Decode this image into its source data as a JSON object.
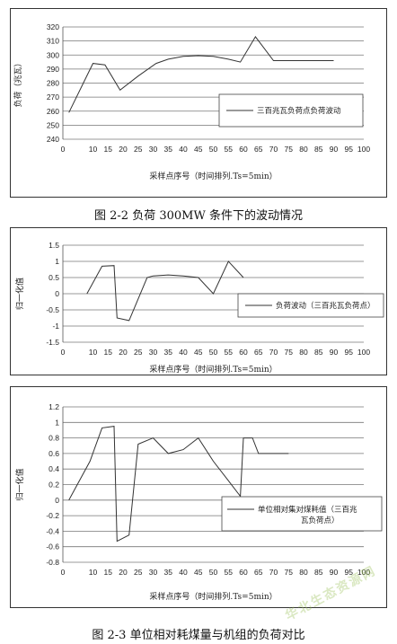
{
  "captions": {
    "fig1": "图 2-2 负荷 300MW 条件下的波动情况",
    "fig2": "图 2-3 单位相对耗煤量与机组的负荷对比"
  },
  "watermark": "华北生态资源网",
  "chart_data": [
    {
      "type": "line",
      "xlabel": "采样点序号（时间排列.Ts=5min）",
      "ylabel": "负荷（兆瓦）",
      "xticks": [
        0,
        10,
        15,
        20,
        25,
        30,
        35,
        40,
        45,
        50,
        55,
        60,
        65,
        70,
        75,
        80,
        85,
        90,
        95,
        100
      ],
      "yticks": [
        240,
        250,
        260,
        270,
        280,
        290,
        300,
        310,
        320
      ],
      "xlim": [
        0,
        100
      ],
      "ylim": [
        240,
        320
      ],
      "grid": "horizontal",
      "legend_position": "center-right",
      "series": [
        {
          "name": "三百兆瓦负荷点负荷波动",
          "x": [
            2,
            10,
            14,
            19,
            25,
            31,
            35,
            40,
            45,
            50,
            55,
            59,
            64,
            70,
            75,
            80,
            85,
            90
          ],
          "y": [
            259,
            294,
            293,
            275,
            285,
            294,
            297,
            299,
            299.5,
            299,
            297,
            295,
            313,
            296,
            296,
            296,
            296,
            296
          ]
        }
      ]
    },
    {
      "type": "line",
      "xlabel": "采样点序号（时间排列.Ts=5min）",
      "ylabel": "归一化值",
      "xticks": [
        0,
        10,
        15,
        20,
        25,
        30,
        35,
        40,
        45,
        50,
        55,
        60,
        65,
        70,
        75,
        80,
        85,
        90,
        95,
        100
      ],
      "yticks": [
        1.5,
        1,
        0.5,
        0,
        -0.5,
        -1,
        -1.5
      ],
      "xlim": [
        0,
        100
      ],
      "ylim": [
        -1.5,
        1.5
      ],
      "grid": "horizontal",
      "legend_position": "center-right",
      "series": [
        {
          "name": "负荷波动（三百兆瓦负荷点）",
          "x": [
            8,
            13,
            17,
            18,
            22,
            28,
            30,
            35,
            40,
            45,
            50,
            55,
            60
          ],
          "y": [
            0,
            0.85,
            0.87,
            -0.75,
            -0.83,
            0.5,
            0.55,
            0.58,
            0.55,
            0.5,
            0,
            1.0,
            0.5
          ]
        }
      ]
    },
    {
      "type": "line",
      "xlabel": "采样点序号（时间排列.Ts=5min）",
      "ylabel": "归一化值",
      "xticks": [
        0,
        10,
        15,
        20,
        25,
        30,
        35,
        40,
        45,
        50,
        55,
        60,
        65,
        70,
        75,
        80,
        85,
        90,
        95,
        100
      ],
      "yticks": [
        1.2,
        1,
        0.8,
        0.6,
        0.4,
        0.2,
        0,
        -0.2,
        -0.4,
        -0.6,
        -0.8
      ],
      "xlim": [
        0,
        100
      ],
      "ylim": [
        -0.8,
        1.2
      ],
      "grid": "horizontal",
      "legend_position": "center-right",
      "series": [
        {
          "name": "单位相对集对煤耗值（三百兆瓦负荷点）",
          "x": [
            2,
            9,
            13,
            17,
            18,
            22,
            25,
            30,
            35,
            40,
            45,
            50,
            55,
            59,
            60,
            63,
            65,
            70,
            75
          ],
          "y": [
            0,
            0.5,
            0.93,
            0.95,
            -0.53,
            -0.45,
            0.72,
            0.8,
            0.6,
            0.65,
            0.8,
            0.5,
            0.25,
            0.05,
            0.8,
            0.8,
            0.6,
            0.6,
            0.6
          ]
        }
      ]
    }
  ]
}
